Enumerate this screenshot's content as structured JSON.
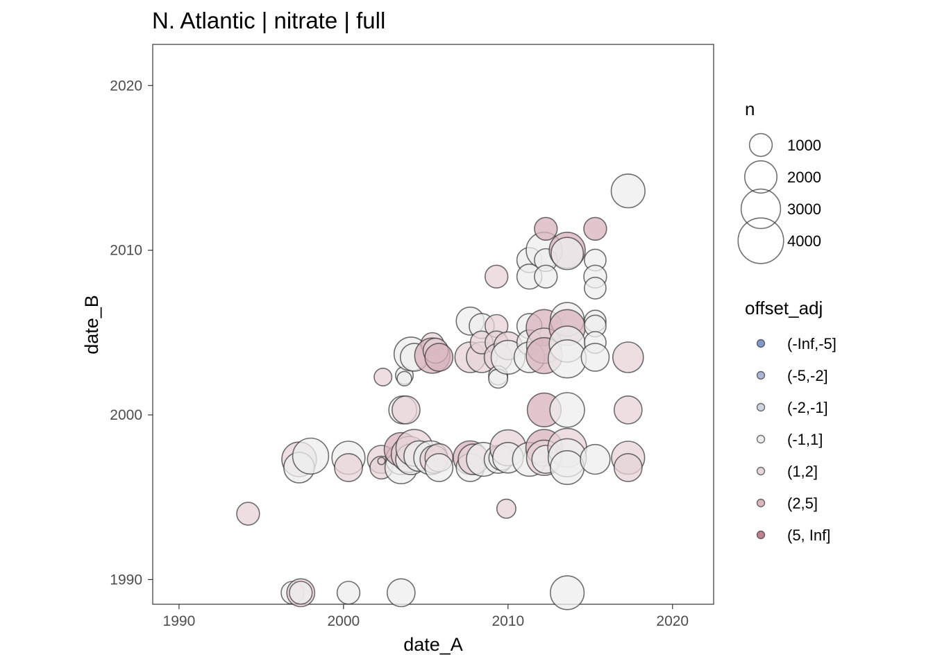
{
  "chart_data": {
    "type": "scatter",
    "title": "N. Atlantic | nitrate | full",
    "xlabel": "date_A",
    "ylabel": "date_B",
    "xlim": [
      1988.4,
      2022.5
    ],
    "ylim": [
      1988.5,
      2022.5
    ],
    "x_ticks": [
      1990,
      2000,
      2010,
      2020
    ],
    "y_ticks": [
      1990,
      2000,
      2010,
      2020
    ],
    "grid": false,
    "size_legend": {
      "title": "n",
      "entries": [
        {
          "label": "1000",
          "value": 1000
        },
        {
          "label": "2000",
          "value": 2000
        },
        {
          "label": "3000",
          "value": 3000
        },
        {
          "label": "4000",
          "value": 4000
        }
      ]
    },
    "color_legend": {
      "title": "offset_adj",
      "entries": [
        {
          "label": "(-Inf,-5]",
          "color": "#7e92c9"
        },
        {
          "label": "(-5,-2]",
          "color": "#a7b2d3"
        },
        {
          "label": "(-2,-1]",
          "color": "#cfd3e2"
        },
        {
          "label": "(-1,1]",
          "color": "#eeeeee"
        },
        {
          "label": "(1,2]",
          "color": "#e5d3d7"
        },
        {
          "label": "(2,5]",
          "color": "#d7b3bc"
        },
        {
          "label": "(5, Inf]",
          "color": "#c07b8e"
        }
      ]
    },
    "points": [
      {
        "x": 1994.2,
        "y": 1994.0,
        "n": 1000,
        "cls": "(1,2]"
      },
      {
        "x": 1996.9,
        "y": 1989.2,
        "n": 1000,
        "cls": "(-1,1]"
      },
      {
        "x": 1997.4,
        "y": 1989.2,
        "n": 1500,
        "cls": "(1,2]"
      },
      {
        "x": 1997.4,
        "y": 1989.2,
        "n": 1000,
        "cls": "(-1,1]"
      },
      {
        "x": 2000.3,
        "y": 1989.2,
        "n": 1000,
        "cls": "(-1,1]"
      },
      {
        "x": 2003.5,
        "y": 1989.2,
        "n": 1500,
        "cls": "(-1,1]"
      },
      {
        "x": 2013.6,
        "y": 1989.2,
        "n": 2200,
        "cls": "(-1,1]"
      },
      {
        "x": 1997.3,
        "y": 1997.3,
        "n": 2300,
        "cls": "(1,2]"
      },
      {
        "x": 1997.3,
        "y": 1996.8,
        "n": 1800,
        "cls": "(-1,1]"
      },
      {
        "x": 1998.0,
        "y": 1997.5,
        "n": 2500,
        "cls": "(-1,1]"
      },
      {
        "x": 2000.3,
        "y": 1997.4,
        "n": 2100,
        "cls": "(-1,1]"
      },
      {
        "x": 2000.3,
        "y": 1996.8,
        "n": 1500,
        "cls": "(1,2]"
      },
      {
        "x": 2002.3,
        "y": 1997.3,
        "n": 1500,
        "cls": "(1,2]"
      },
      {
        "x": 2002.3,
        "y": 1996.8,
        "n": 1000,
        "cls": "(1,2]"
      },
      {
        "x": 2002.3,
        "y": 1997.2,
        "n": 100,
        "cls": "(1,2]"
      },
      {
        "x": 2003.5,
        "y": 1997.3,
        "n": 1800,
        "cls": "(-1,1]"
      },
      {
        "x": 2003.5,
        "y": 1996.8,
        "n": 2000,
        "cls": "(-1,1]"
      },
      {
        "x": 2003.5,
        "y": 1997.9,
        "n": 2200,
        "cls": "(2,5]"
      },
      {
        "x": 2003.6,
        "y": 2000.3,
        "n": 1500,
        "cls": "(-1,1]"
      },
      {
        "x": 2003.8,
        "y": 2000.3,
        "n": 1500,
        "cls": "(1,2]"
      },
      {
        "x": 2004.0,
        "y": 1997.6,
        "n": 2500,
        "cls": "(1,2]"
      },
      {
        "x": 2004.1,
        "y": 1997.3,
        "n": 1800,
        "cls": "(-1,1]"
      },
      {
        "x": 2004.3,
        "y": 1998.0,
        "n": 2600,
        "cls": "(1,2]"
      },
      {
        "x": 2004.6,
        "y": 1997.5,
        "n": 1800,
        "cls": "(-1,1]"
      },
      {
        "x": 2005.3,
        "y": 1997.4,
        "n": 2200,
        "cls": "(-1,1]"
      },
      {
        "x": 2005.5,
        "y": 1997.3,
        "n": 1500,
        "cls": "(1,2]"
      },
      {
        "x": 2005.8,
        "y": 1997.4,
        "n": 1500,
        "cls": "(1,2]"
      },
      {
        "x": 2005.8,
        "y": 1996.8,
        "n": 1500,
        "cls": "(-1,1]"
      },
      {
        "x": 2002.4,
        "y": 2002.3,
        "n": 600,
        "cls": "(1,2]"
      },
      {
        "x": 2003.7,
        "y": 2002.4,
        "n": 600,
        "cls": "(-1,1]"
      },
      {
        "x": 2003.7,
        "y": 2002.2,
        "n": 400,
        "cls": "(-1,1]"
      },
      {
        "x": 2004.1,
        "y": 2003.7,
        "n": 2200,
        "cls": "(-1,1]"
      },
      {
        "x": 2004.3,
        "y": 2003.5,
        "n": 1500,
        "cls": "(-1,1]"
      },
      {
        "x": 2005.4,
        "y": 2004.3,
        "n": 1000,
        "cls": "(1,2]"
      },
      {
        "x": 2005.4,
        "y": 2003.6,
        "n": 2400,
        "cls": "(2,5]"
      },
      {
        "x": 2005.6,
        "y": 2003.9,
        "n": 1200,
        "cls": "(1,2]"
      },
      {
        "x": 2005.8,
        "y": 2003.5,
        "n": 1500,
        "cls": "(2,5]"
      },
      {
        "x": 2007.7,
        "y": 1997.4,
        "n": 2200,
        "cls": "(2,5]"
      },
      {
        "x": 2007.7,
        "y": 1996.8,
        "n": 1500,
        "cls": "(-1,1]"
      },
      {
        "x": 2007.9,
        "y": 1997.3,
        "n": 1800,
        "cls": "(1,2]"
      },
      {
        "x": 2008.5,
        "y": 1997.3,
        "n": 2200,
        "cls": "(-1,1]"
      },
      {
        "x": 2007.7,
        "y": 2003.5,
        "n": 1800,
        "cls": "(1,2]"
      },
      {
        "x": 2008.4,
        "y": 2003.5,
        "n": 1800,
        "cls": "(1,2]"
      },
      {
        "x": 2007.7,
        "y": 2005.7,
        "n": 1500,
        "cls": "(-1,1]"
      },
      {
        "x": 2008.4,
        "y": 2005.4,
        "n": 1200,
        "cls": "(-1,1]"
      },
      {
        "x": 2008.4,
        "y": 2004.4,
        "n": 1000,
        "cls": "(1,2]"
      },
      {
        "x": 2009.3,
        "y": 2005.4,
        "n": 1000,
        "cls": "(1,2]"
      },
      {
        "x": 2009.3,
        "y": 2004.4,
        "n": 1000,
        "cls": "(1,2]"
      },
      {
        "x": 2009.4,
        "y": 2003.5,
        "n": 1500,
        "cls": "(1,2]"
      },
      {
        "x": 2009.4,
        "y": 2002.4,
        "n": 700,
        "cls": "(-1,1]"
      },
      {
        "x": 2009.4,
        "y": 2002.2,
        "n": 700,
        "cls": "(-1,1]"
      },
      {
        "x": 2009.4,
        "y": 1997.3,
        "n": 1500,
        "cls": "(-1,1]"
      },
      {
        "x": 2009.6,
        "y": 1997.4,
        "n": 1200,
        "cls": "(-1,1]"
      },
      {
        "x": 2009.9,
        "y": 1994.3,
        "n": 700,
        "cls": "(1,2]"
      },
      {
        "x": 2009.3,
        "y": 2008.4,
        "n": 1000,
        "cls": "(1,2]"
      },
      {
        "x": 2010.0,
        "y": 2004.2,
        "n": 1500,
        "cls": "(1,2]"
      },
      {
        "x": 2010.0,
        "y": 2003.5,
        "n": 2200,
        "cls": "(-1,1]"
      },
      {
        "x": 2010.0,
        "y": 1998.0,
        "n": 2500,
        "cls": "(1,2]"
      },
      {
        "x": 2010.0,
        "y": 1997.4,
        "n": 1800,
        "cls": "(-1,1]"
      },
      {
        "x": 2011.3,
        "y": 2009.4,
        "n": 1200,
        "cls": "(-1,1]"
      },
      {
        "x": 2011.3,
        "y": 2008.4,
        "n": 1200,
        "cls": "(-1,1]"
      },
      {
        "x": 2011.3,
        "y": 2005.4,
        "n": 1200,
        "cls": "(-1,1]"
      },
      {
        "x": 2011.3,
        "y": 2004.4,
        "n": 1200,
        "cls": "(-1,1]"
      },
      {
        "x": 2011.3,
        "y": 2003.5,
        "n": 1800,
        "cls": "(-1,1]"
      },
      {
        "x": 2011.3,
        "y": 1997.3,
        "n": 2200,
        "cls": "(-1,1]"
      },
      {
        "x": 2012.2,
        "y": 2010.0,
        "n": 2500,
        "cls": "(-1,1]"
      },
      {
        "x": 2012.2,
        "y": 2005.3,
        "n": 2500,
        "cls": "(2,5]"
      },
      {
        "x": 2012.2,
        "y": 2004.2,
        "n": 2400,
        "cls": "(1,2]"
      },
      {
        "x": 2012.2,
        "y": 2003.6,
        "n": 2500,
        "cls": "(2,5]"
      },
      {
        "x": 2012.2,
        "y": 2000.3,
        "n": 2200,
        "cls": "(2,5]"
      },
      {
        "x": 2012.2,
        "y": 1998.0,
        "n": 2600,
        "cls": "(2,5]"
      },
      {
        "x": 2012.2,
        "y": 1997.4,
        "n": 2400,
        "cls": "(1,2]"
      },
      {
        "x": 2012.3,
        "y": 2011.3,
        "n": 1000,
        "cls": "(2,5]"
      },
      {
        "x": 2012.3,
        "y": 2009.4,
        "n": 1000,
        "cls": "(-1,1]"
      },
      {
        "x": 2012.3,
        "y": 2008.4,
        "n": 1000,
        "cls": "(-1,1]"
      },
      {
        "x": 2012.3,
        "y": 1997.3,
        "n": 1500,
        "cls": "(-1,1]"
      },
      {
        "x": 2013.6,
        "y": 2010.0,
        "n": 2500,
        "cls": "(2,5]"
      },
      {
        "x": 2013.6,
        "y": 2009.8,
        "n": 2000,
        "cls": "(-1,1]"
      },
      {
        "x": 2013.6,
        "y": 2005.8,
        "n": 2200,
        "cls": "(-1,1]"
      },
      {
        "x": 2013.6,
        "y": 2005.3,
        "n": 2500,
        "cls": "(2,5]"
      },
      {
        "x": 2013.6,
        "y": 2004.3,
        "n": 2500,
        "cls": "(-1,1]"
      },
      {
        "x": 2013.6,
        "y": 2003.4,
        "n": 2800,
        "cls": "(-1,1]"
      },
      {
        "x": 2013.6,
        "y": 2000.3,
        "n": 2300,
        "cls": "(-1,1]"
      },
      {
        "x": 2013.6,
        "y": 1998.0,
        "n": 2900,
        "cls": "(1,2]"
      },
      {
        "x": 2013.6,
        "y": 1997.4,
        "n": 2800,
        "cls": "(-1,1]"
      },
      {
        "x": 2013.6,
        "y": 1996.8,
        "n": 2200,
        "cls": "(-1,1]"
      },
      {
        "x": 2015.3,
        "y": 2011.3,
        "n": 1000,
        "cls": "(2,5]"
      },
      {
        "x": 2015.3,
        "y": 2009.4,
        "n": 900,
        "cls": "(-1,1]"
      },
      {
        "x": 2015.3,
        "y": 2008.4,
        "n": 1000,
        "cls": "(-1,1]"
      },
      {
        "x": 2015.3,
        "y": 2007.7,
        "n": 900,
        "cls": "(-1,1]"
      },
      {
        "x": 2015.3,
        "y": 2005.7,
        "n": 900,
        "cls": "(-1,1]"
      },
      {
        "x": 2015.3,
        "y": 2005.4,
        "n": 900,
        "cls": "(-1,1]"
      },
      {
        "x": 2015.3,
        "y": 2004.4,
        "n": 900,
        "cls": "(-1,1]"
      },
      {
        "x": 2015.3,
        "y": 2003.5,
        "n": 1500,
        "cls": "(-1,1]"
      },
      {
        "x": 2015.3,
        "y": 1997.3,
        "n": 1700,
        "cls": "(-1,1]"
      },
      {
        "x": 2017.3,
        "y": 2013.6,
        "n": 2200,
        "cls": "(-1,1]"
      },
      {
        "x": 2017.3,
        "y": 2003.5,
        "n": 1800,
        "cls": "(1,2]"
      },
      {
        "x": 2017.3,
        "y": 2000.3,
        "n": 1500,
        "cls": "(1,2]"
      },
      {
        "x": 2017.3,
        "y": 1997.4,
        "n": 2100,
        "cls": "(1,2]"
      },
      {
        "x": 2017.3,
        "y": 1996.8,
        "n": 1500,
        "cls": "(1,2]"
      }
    ]
  }
}
